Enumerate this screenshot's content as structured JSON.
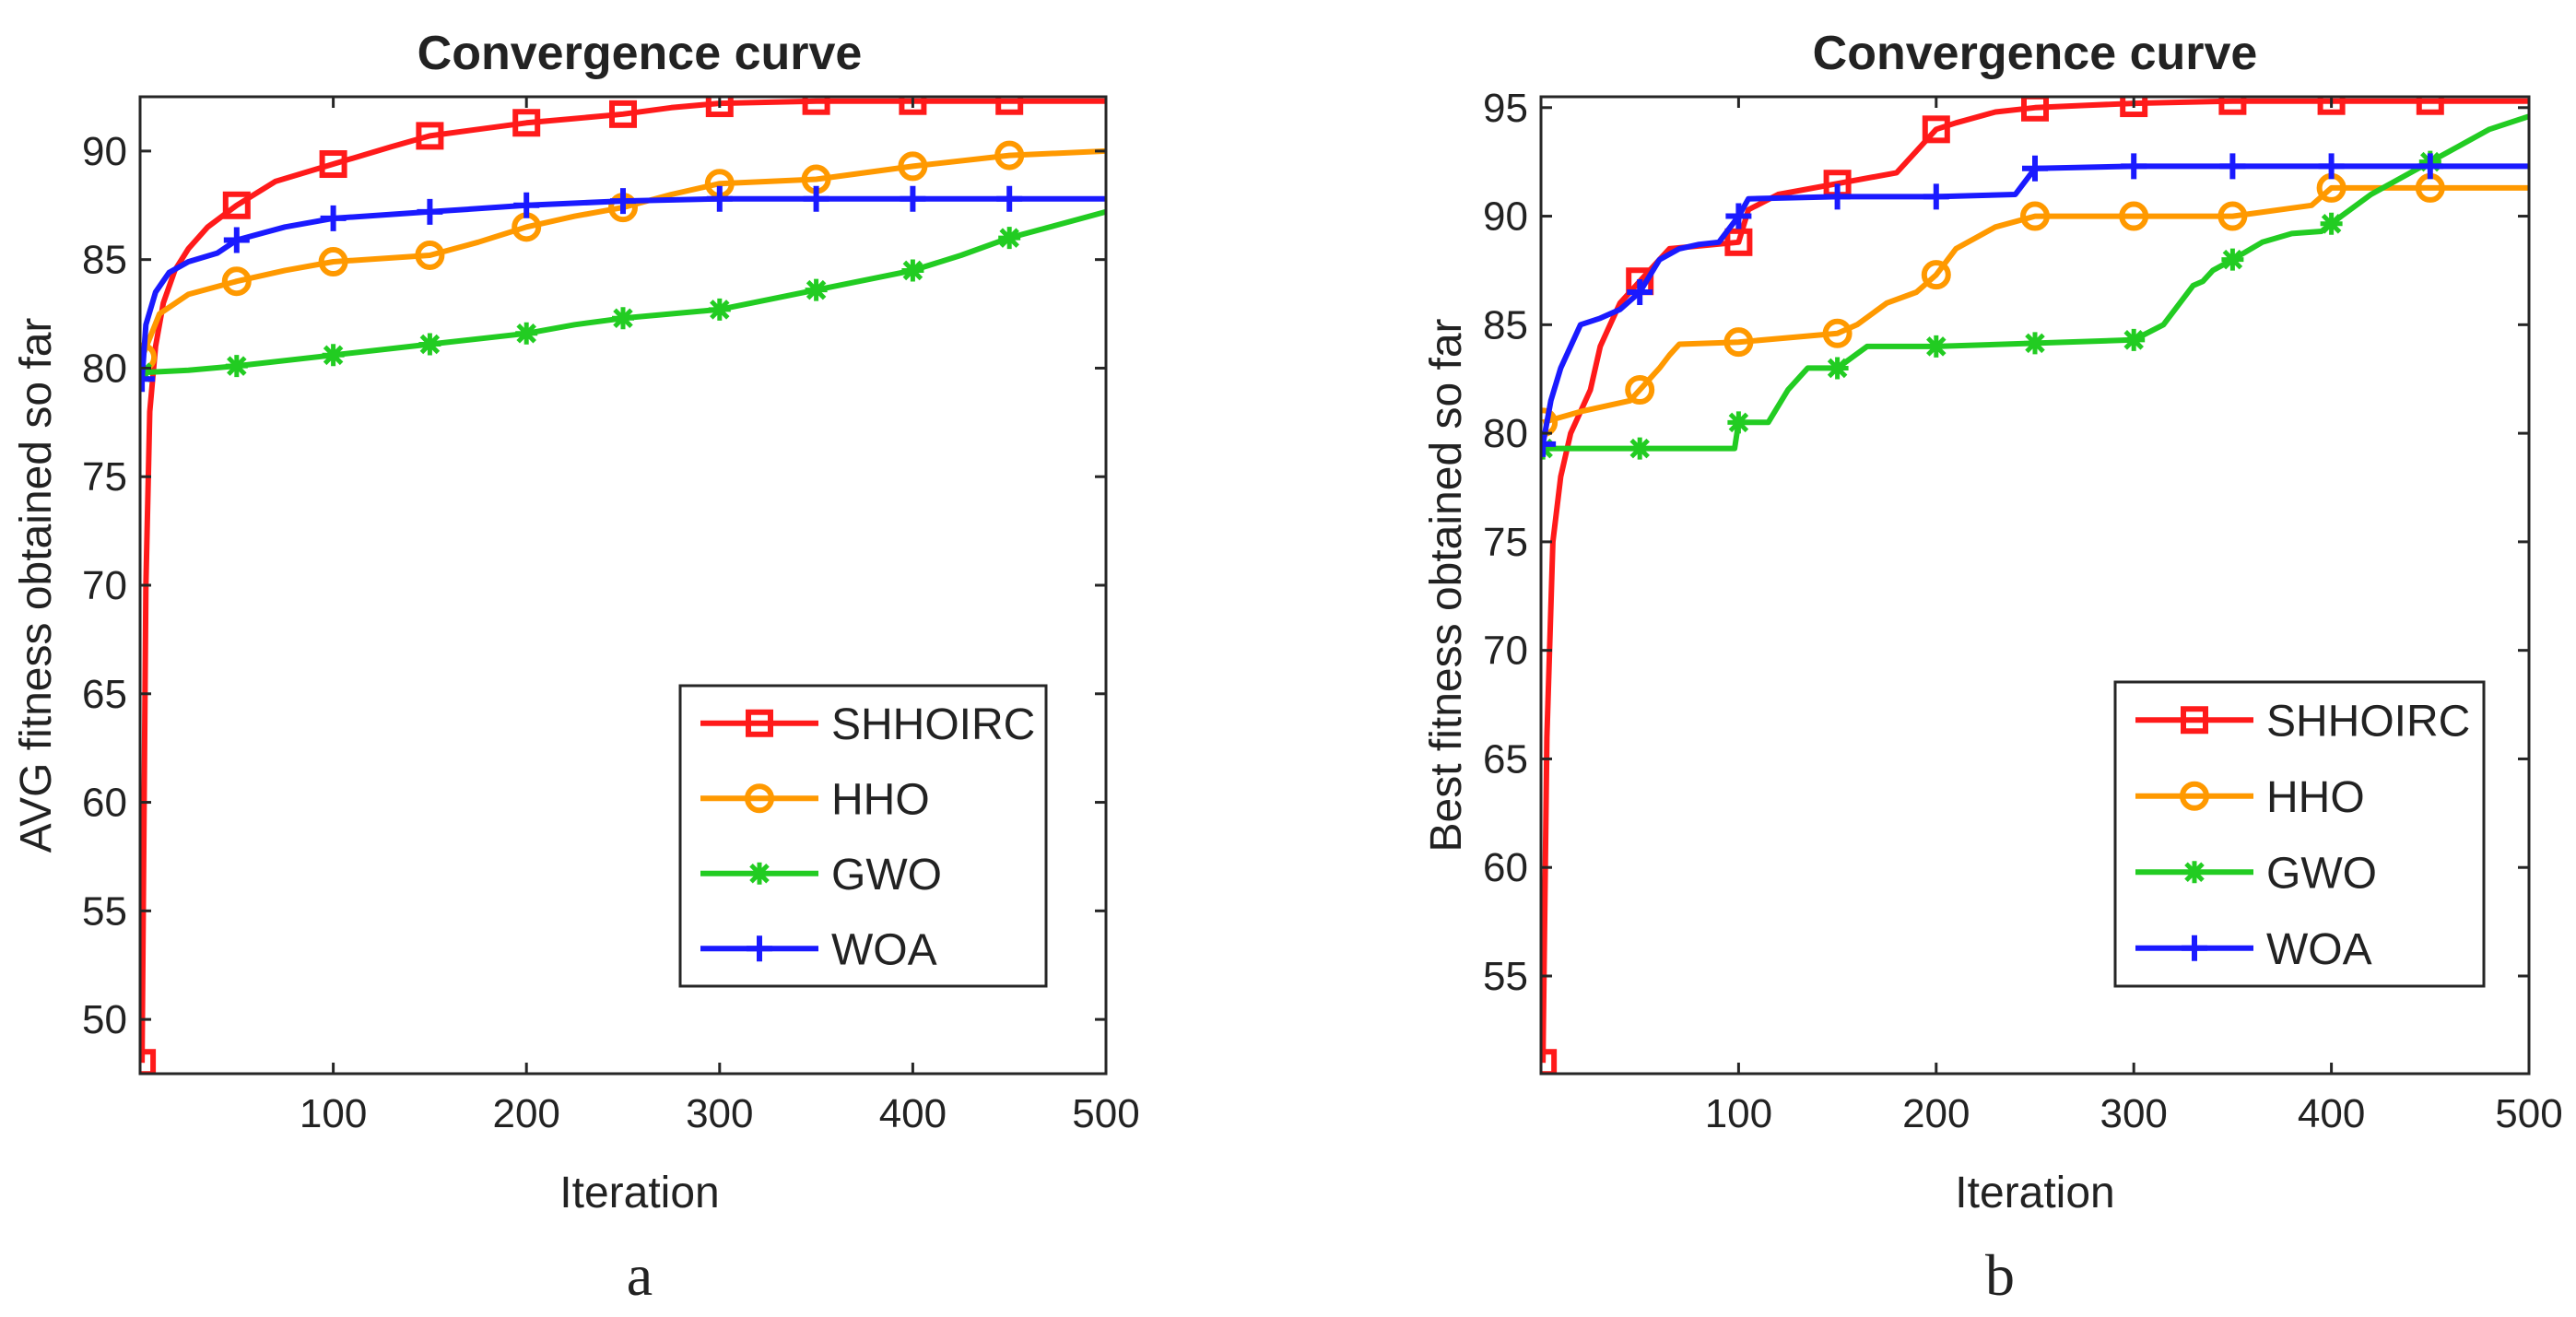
{
  "chart_data": [
    {
      "type": "line",
      "panel_label": "a",
      "title": "Convergence curve",
      "xlabel": "Iteration",
      "ylabel": "AVG fitness obtained so far",
      "xlim": [
        0,
        500
      ],
      "ylim": [
        47.5,
        92.5
      ],
      "xticks": [
        100,
        200,
        300,
        400,
        500
      ],
      "yticks": [
        50,
        55,
        60,
        65,
        70,
        75,
        80,
        85,
        90
      ],
      "legend_position": "bottom-right",
      "series": [
        {
          "name": "SHHOIRC",
          "color": "#ff1a1a",
          "marker": "square",
          "x": [
            1,
            3,
            5,
            8,
            12,
            18,
            25,
            35,
            50,
            70,
            100,
            130,
            150,
            175,
            200,
            225,
            250,
            275,
            300,
            350,
            400,
            450,
            500
          ],
          "y": [
            48,
            70,
            78,
            81,
            83,
            84.5,
            85.5,
            86.5,
            87.5,
            88.6,
            89.4,
            90.2,
            90.7,
            91,
            91.3,
            91.5,
            91.7,
            92,
            92.2,
            92.3,
            92.3,
            92.3,
            92.3
          ]
        },
        {
          "name": "HHO",
          "color": "#ff9900",
          "marker": "circle",
          "x": [
            1,
            10,
            25,
            50,
            75,
            100,
            150,
            175,
            200,
            225,
            250,
            275,
            300,
            350,
            400,
            450,
            500
          ],
          "y": [
            80.5,
            82.5,
            83.4,
            84,
            84.5,
            84.9,
            85.2,
            85.8,
            86.5,
            87,
            87.4,
            88,
            88.5,
            88.7,
            89.3,
            89.8,
            90
          ]
        },
        {
          "name": "GWO",
          "color": "#22cc22",
          "marker": "asterisk",
          "x": [
            1,
            25,
            50,
            100,
            150,
            200,
            225,
            250,
            300,
            350,
            400,
            425,
            450,
            475,
            500
          ],
          "y": [
            79.8,
            79.9,
            80.1,
            80.6,
            81.1,
            81.6,
            82,
            82.3,
            82.7,
            83.6,
            84.5,
            85.2,
            86,
            86.6,
            87.2
          ]
        },
        {
          "name": "WOA",
          "color": "#1a1aff",
          "marker": "plus",
          "x": [
            1,
            3,
            8,
            15,
            25,
            40,
            50,
            75,
            100,
            150,
            200,
            250,
            300,
            350,
            400,
            450,
            500
          ],
          "y": [
            79.5,
            82,
            83.5,
            84.4,
            84.9,
            85.3,
            85.9,
            86.5,
            86.9,
            87.2,
            87.5,
            87.7,
            87.8,
            87.8,
            87.8,
            87.8,
            87.8
          ]
        }
      ]
    },
    {
      "type": "line",
      "panel_label": "b",
      "title": "Convergence curve",
      "xlabel": "Iteration",
      "ylabel": "Best fitness obtained so far",
      "xlim": [
        0,
        500
      ],
      "ylim": [
        50.5,
        95.5
      ],
      "xticks": [
        100,
        200,
        300,
        400,
        500
      ],
      "yticks": [
        55,
        60,
        65,
        70,
        75,
        80,
        85,
        90,
        95
      ],
      "legend_position": "bottom-right",
      "series": [
        {
          "name": "SHHOIRC",
          "color": "#ff1a1a",
          "marker": "square",
          "x": [
            1,
            3,
            6,
            10,
            15,
            20,
            25,
            30,
            35,
            40,
            45,
            50,
            55,
            60,
            65,
            100,
            105,
            120,
            150,
            180,
            190,
            200,
            210,
            230,
            250,
            275,
            300,
            350,
            400,
            450,
            500
          ],
          "y": [
            51,
            66,
            75,
            78,
            80,
            81,
            82,
            84,
            85,
            86,
            86.5,
            87,
            87.5,
            88,
            88.5,
            88.8,
            90.3,
            91,
            91.5,
            92,
            93,
            94,
            94.3,
            94.8,
            95,
            95.1,
            95.2,
            95.3,
            95.3,
            95.3,
            95.3
          ]
        },
        {
          "name": "HHO",
          "color": "#ff9900",
          "marker": "circle",
          "x": [
            1,
            20,
            45,
            50,
            55,
            60,
            65,
            70,
            100,
            150,
            160,
            175,
            190,
            200,
            210,
            230,
            250,
            300,
            350,
            390,
            400,
            450,
            500
          ],
          "y": [
            80.5,
            81,
            81.5,
            82,
            82.5,
            83,
            83.6,
            84.1,
            84.2,
            84.6,
            85,
            86,
            86.5,
            87.3,
            88.5,
            89.5,
            90,
            90,
            90,
            90.5,
            91.3,
            91.3,
            91.3
          ]
        },
        {
          "name": "GWO",
          "color": "#22cc22",
          "marker": "asterisk",
          "x": [
            1,
            50,
            98,
            100,
            115,
            125,
            135,
            150,
            165,
            200,
            300,
            315,
            325,
            330,
            335,
            340,
            350,
            365,
            380,
            395,
            405,
            420,
            440,
            460,
            480,
            500
          ],
          "y": [
            79.3,
            79.3,
            79.3,
            80.5,
            80.5,
            82,
            83,
            83,
            84,
            84,
            84.3,
            85,
            86.2,
            86.8,
            87,
            87.5,
            88,
            88.8,
            89.2,
            89.3,
            90,
            91,
            92,
            93,
            94,
            94.6
          ]
        },
        {
          "name": "WOA",
          "color": "#1a1aff",
          "marker": "plus",
          "x": [
            1,
            5,
            10,
            20,
            30,
            40,
            50,
            60,
            70,
            80,
            90,
            100,
            105,
            150,
            200,
            240,
            250,
            300,
            350,
            400,
            450,
            500
          ],
          "y": [
            79.5,
            81.5,
            83,
            85,
            85.3,
            85.7,
            86.5,
            88,
            88.5,
            88.7,
            88.8,
            90,
            90.8,
            90.9,
            90.9,
            91,
            92.2,
            92.3,
            92.3,
            92.3,
            92.3,
            92.3
          ]
        }
      ]
    }
  ]
}
